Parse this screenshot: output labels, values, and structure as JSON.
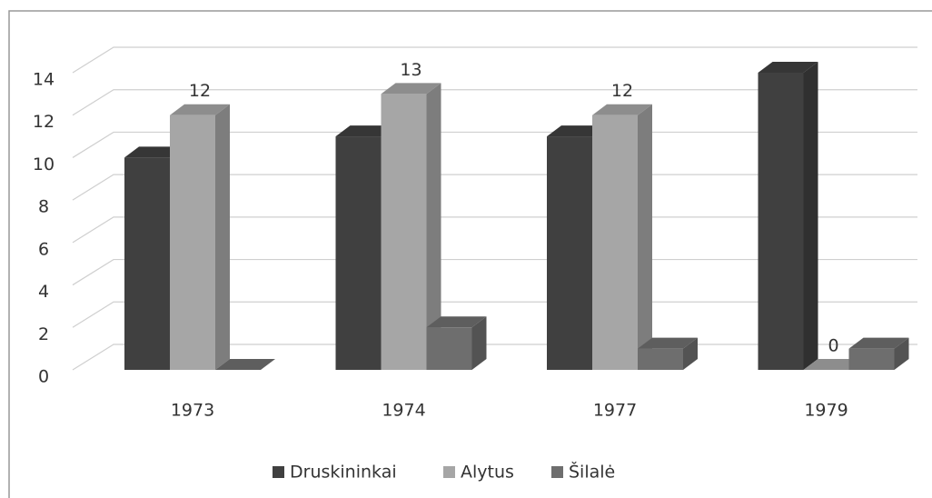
{
  "chart_data": {
    "type": "bar3d",
    "categories": [
      "1973",
      "1974",
      "1977",
      "1979"
    ],
    "series": [
      {
        "name": "Druskininkai",
        "color": "#404040",
        "values": [
          10,
          11,
          11,
          14
        ]
      },
      {
        "name": "Alytus",
        "color": "#a6a6a6",
        "values": [
          12,
          13,
          12,
          0
        ],
        "data_labels": true
      },
      {
        "name": "Šilalė",
        "color": "#6e6e6e",
        "values": [
          0,
          2,
          1,
          1
        ]
      }
    ],
    "ylim": [
      0,
      14
    ],
    "yticks": [
      0,
      2,
      4,
      6,
      8,
      10,
      12,
      14
    ],
    "grid": true,
    "legend": "bottom"
  }
}
